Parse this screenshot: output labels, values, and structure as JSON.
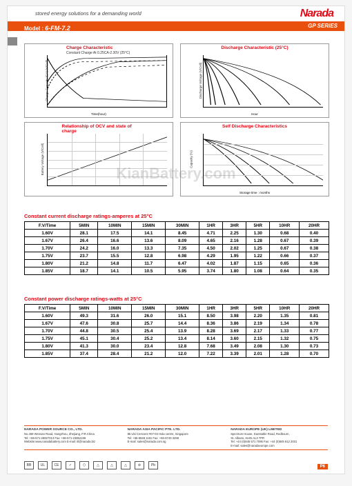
{
  "header": {
    "tagline": "stored energy solutions for a demanding world",
    "brand": "Narada",
    "model_label": "Model :",
    "model": "6-FM-7.2",
    "series": "GP SERIES"
  },
  "watermark": "KianBattery.com",
  "charts": [
    {
      "title": "Charge Characteristic",
      "subtitle": "Constant Charge At 0.25CA-2.30V (25°C)",
      "ylabel_left": "Charge Capacity (CA) (V/Cell)",
      "xlabel": "Time(hour)",
      "xticks": [
        "0",
        "2",
        "4",
        "6",
        "8",
        "10",
        "12",
        "14",
        "16"
      ],
      "yticks": [
        "0.05",
        "0.10",
        "0.15",
        "0.20",
        "0.25",
        "0.30"
      ],
      "legend": [
        "Charge Voltage",
        "Charge Capacity",
        "100%Discharge",
        "50%Discharge",
        "Charge Current"
      ]
    },
    {
      "title": "Discharge Characteristic (25°C)",
      "ylabel_left": "Discharge Voltage (V/Cell)",
      "xlabel": "Hour",
      "xticks": [
        "0",
        "2",
        "4",
        "6",
        "8",
        "10",
        "12",
        "14",
        "16",
        "18",
        "20"
      ],
      "yticks": [
        "1.60",
        "1.70",
        "1.80",
        "1.90",
        "2.00",
        "2.05",
        "2.10",
        "2.15"
      ],
      "curves": [
        "3CA",
        "2CA",
        "1CA",
        "0.5CA",
        "0.25CA",
        "0.1CA",
        "0.05CA"
      ],
      "minlabel": "Min"
    },
    {
      "title": "Relationship of OCV and state of charge",
      "ylabel_left": "Battery Voltage (V/Cell)",
      "xticks": [
        "0",
        "20",
        "40",
        "60",
        "80",
        "100"
      ],
      "yticks": [
        "1.85",
        "1.90",
        "1.95",
        "2.00",
        "2.05",
        "2.10",
        "2.15"
      ]
    },
    {
      "title": "Self Discharge Characteristics",
      "ylabel_left": "Capacity (%)",
      "xlabel": "Storage time : months",
      "xticks": [
        "0",
        "1",
        "2",
        "3",
        "4",
        "5",
        "6",
        "7",
        "8",
        "9",
        "10",
        "11",
        "12",
        "13",
        "14",
        "15",
        "16",
        "17",
        "18",
        "19",
        "20"
      ],
      "yticks": [
        "0",
        "20",
        "40",
        "60",
        "80",
        "100",
        "110"
      ],
      "curves": [
        "40°C",
        "30°C",
        "20°C",
        "10°C"
      ]
    }
  ],
  "tables": [
    {
      "title": "Constant current discharge ratings-amperes at 25°C",
      "columns": [
        "F.V/Time",
        "5MIN",
        "10MIN",
        "15MIN",
        "30MIN",
        "1HR",
        "3HR",
        "5HR",
        "10HR",
        "20HR"
      ],
      "rows": [
        [
          "1.60V",
          "28.1",
          "17.5",
          "14.1",
          "8.45",
          "4.71",
          "2.25",
          "1.30",
          "0.68",
          "0.40"
        ],
        [
          "1.67V",
          "26.4",
          "16.6",
          "13.6",
          "8.09",
          "4.65",
          "2.16",
          "1.28",
          "0.67",
          "0.39"
        ],
        [
          "1.70V",
          "24.2",
          "16.0",
          "13.3",
          "7.35",
          "4.50",
          "2.02",
          "1.25",
          "0.67",
          "0.38"
        ],
        [
          "1.75V",
          "23.7",
          "15.5",
          "12.8",
          "6.98",
          "4.29",
          "1.95",
          "1.22",
          "0.66",
          "0.37"
        ],
        [
          "1.80V",
          "21.2",
          "14.8",
          "11.7",
          "6.47",
          "4.02",
          "1.87",
          "1.15",
          "0.65",
          "0.36"
        ],
        [
          "1.85V",
          "18.7",
          "14.1",
          "10.5",
          "5.95",
          "3.74",
          "1.80",
          "1.08",
          "0.64",
          "0.35"
        ]
      ]
    },
    {
      "title": "Constant power discharge ratings-watts at 25°C",
      "columns": [
        "F.V/Time",
        "5MIN",
        "10MIN",
        "15MIN",
        "30MIN",
        "1HR",
        "3HR",
        "5HR",
        "10HR",
        "20HR"
      ],
      "rows": [
        [
          "1.60V",
          "49.3",
          "31.6",
          "26.0",
          "15.1",
          "8.50",
          "3.98",
          "2.20",
          "1.35",
          "0.81"
        ],
        [
          "1.67V",
          "47.6",
          "30.8",
          "25.7",
          "14.4",
          "8.36",
          "3.86",
          "2.19",
          "1.34",
          "0.78"
        ],
        [
          "1.70V",
          "44.8",
          "30.5",
          "25.4",
          "13.9",
          "8.28",
          "3.69",
          "2.17",
          "1.33",
          "0.77"
        ],
        [
          "1.75V",
          "45.1",
          "30.4",
          "25.2",
          "13.4",
          "8.14",
          "3.60",
          "2.15",
          "1.32",
          "0.75"
        ],
        [
          "1.80V",
          "41.3",
          "30.0",
          "23.4",
          "12.8",
          "7.68",
          "3.49",
          "2.08",
          "1.30",
          "0.73"
        ],
        [
          "1.85V",
          "37.4",
          "28.4",
          "21.2",
          "12.0",
          "7.22",
          "3.39",
          "2.01",
          "1.28",
          "0.70"
        ]
      ]
    }
  ],
  "footer": {
    "cols": [
      {
        "h": "NARADA POWER SOURCE CO., LTD.",
        "lines": [
          "No.459 Wensan Road, Hangzhou, Zhejiang, P.R.China",
          "Tel: +86-571-28827013   Fax: +86-571-23852189",
          "Website:www.naradabattery.com   E-mail: itl@narada.biz"
        ]
      },
      {
        "h": "NARADA ASIA PACIFIC PTE. LTD.",
        "lines": [
          "85 Ubi Crescent #07-03 Hola centre, Singapore",
          "Tel: +65-6848 1191 Fax: +65-6749 3498",
          "E-mail: sales@narada.com.sg"
        ]
      },
      {
        "h": "NARADA EUROPE (UK) LIMITED",
        "lines": [
          "Spectrum House, Dunstable Road, Redbourn,",
          "St. Albans, Herts AL3 7PR",
          "Tel: +44 (0)845 571 7095  Fax: +44 (0)845 612 2031",
          "E-mail: sales@naradaeurope.com"
        ]
      }
    ]
  },
  "certs": [
    "BB",
    "UL",
    "CE",
    "✓",
    "⬡",
    "△",
    "△",
    "△",
    "⊘",
    "Pb"
  ],
  "pagenum": "P6"
}
